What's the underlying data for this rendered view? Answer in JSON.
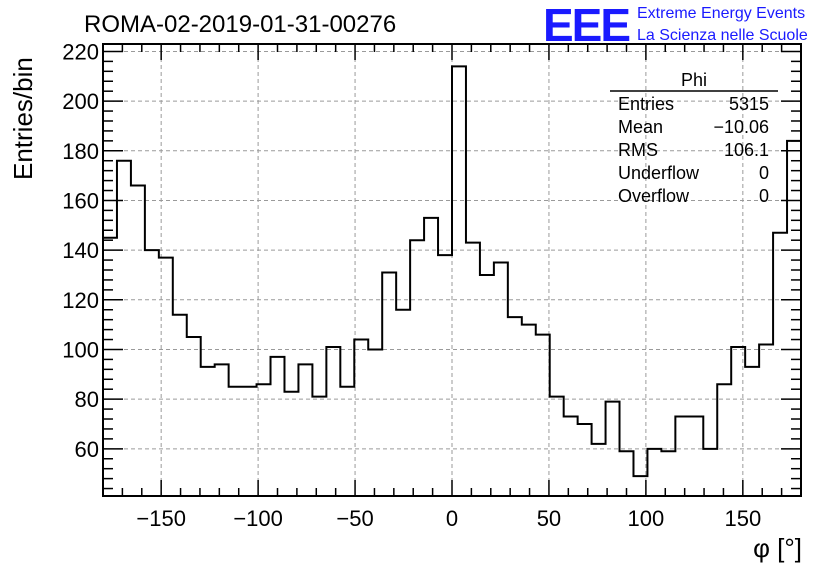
{
  "header": {
    "title": "ROMA-02-2019-01-31-00276",
    "logo_mark": "EEE",
    "logo_line1": "Extreme Energy Events",
    "logo_line2": "La Scienza nelle Scuole"
  },
  "stats_box": {
    "title": "Phi",
    "rows": [
      {
        "label": "Entries",
        "value": "5315"
      },
      {
        "label": "Mean",
        "value": "−10.06"
      },
      {
        "label": "RMS",
        "value": "106.1"
      },
      {
        "label": "Underflow",
        "value": "0"
      },
      {
        "label": "Overflow",
        "value": "0"
      }
    ]
  },
  "chart_data": {
    "type": "histogram",
    "title": "ROMA-02-2019-01-31-00276",
    "xlabel": "φ [°]",
    "ylabel": "Entries/bin",
    "xlim": [
      -180,
      180
    ],
    "ylim": [
      41,
      223
    ],
    "bin_width": 7.2,
    "grid": true,
    "x_ticks": [
      -150,
      -100,
      -50,
      0,
      50,
      100,
      150
    ],
    "x_tick_labels": [
      "−150",
      "−100",
      "−50",
      "0",
      "50",
      "100",
      "150"
    ],
    "y_ticks": [
      60,
      80,
      100,
      120,
      140,
      160,
      180,
      200,
      220
    ],
    "y_tick_labels": [
      "60",
      "80",
      "100",
      "120",
      "140",
      "160",
      "180",
      "200",
      "220"
    ],
    "values": [
      145,
      176,
      166,
      140,
      137,
      114,
      105,
      93,
      94,
      85,
      85,
      86,
      97,
      83,
      94,
      81,
      101,
      85,
      104,
      100,
      131,
      116,
      144,
      153,
      138,
      214,
      143,
      130,
      135,
      113,
      110,
      106,
      81,
      73,
      70,
      62,
      79,
      59,
      49,
      60,
      59,
      73,
      73,
      60,
      86,
      101,
      93,
      102,
      147,
      184
    ]
  }
}
